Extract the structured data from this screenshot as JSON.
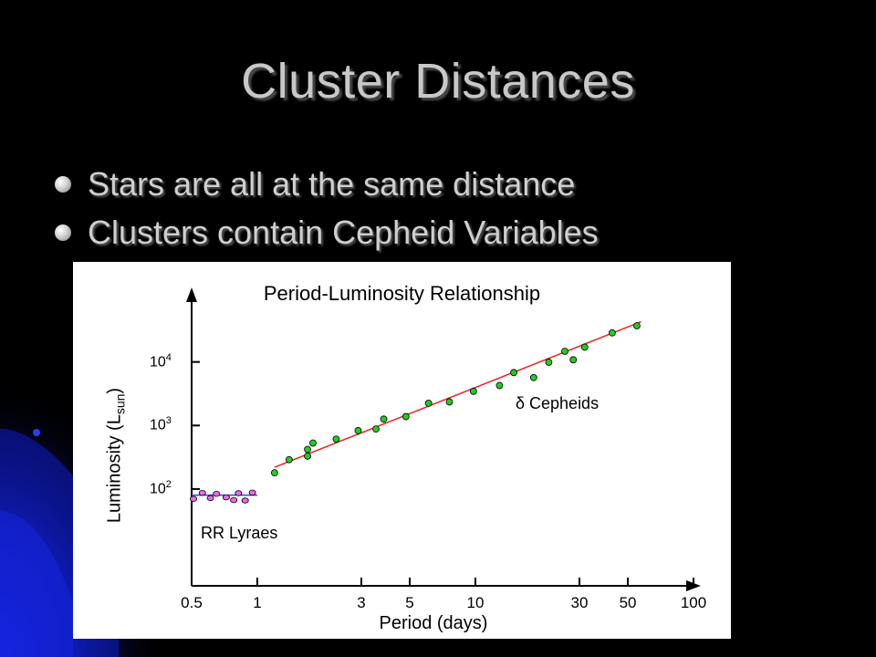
{
  "slide": {
    "title": "Cluster Distances",
    "bullets": [
      "Stars are all at the same distance",
      "Clusters contain Cepheid Variables"
    ]
  },
  "colors": {
    "cepheid": "#22cc22",
    "rr_lyrae": "#ee66ee",
    "fit_line": "#ee2222",
    "rr_line": "#2a4fd6"
  },
  "chart_data": {
    "type": "scatter",
    "title": "Period-Luminosity Relationship",
    "xlabel": "Period (days)",
    "ylabel": "Luminosity (L",
    "ylabel_sub": "sun",
    "ylabel_end": ")",
    "x_scale": "log",
    "y_scale": "log",
    "xlim": [
      0.5,
      100
    ],
    "ylim": [
      3,
      100000
    ],
    "x_ticks": [
      0.5,
      1,
      3,
      5,
      10,
      30,
      50,
      100
    ],
    "x_tick_labels": [
      "0.5",
      "1",
      "3",
      "5",
      "10",
      "30",
      "50",
      "100"
    ],
    "y_tick_labels": [
      {
        "value": 100,
        "base": "10",
        "exp": "2"
      },
      {
        "value": 1000,
        "base": "10",
        "exp": "3"
      },
      {
        "value": 10000,
        "base": "10",
        "exp": "4"
      }
    ],
    "grid": false,
    "series": [
      {
        "name": "δ Cepheids",
        "points": [
          [
            1.2,
            180
          ],
          [
            1.4,
            290
          ],
          [
            1.7,
            330
          ],
          [
            1.7,
            420
          ],
          [
            1.8,
            530
          ],
          [
            2.3,
            610
          ],
          [
            2.9,
            830
          ],
          [
            3.5,
            880
          ],
          [
            3.8,
            1260
          ],
          [
            4.8,
            1380
          ],
          [
            6.1,
            2240
          ],
          [
            7.6,
            2350
          ],
          [
            9.8,
            3450
          ],
          [
            12.9,
            4260
          ],
          [
            15.0,
            6800
          ],
          [
            18.5,
            5680
          ],
          [
            21.7,
            9900
          ],
          [
            25.7,
            14700
          ],
          [
            28.1,
            10800
          ],
          [
            31.7,
            17100
          ],
          [
            42.4,
            28700
          ],
          [
            55.0,
            37100
          ]
        ],
        "fit": [
          [
            1.2,
            220
          ],
          [
            57.5,
            43000
          ]
        ]
      },
      {
        "name": "RR Lyraes",
        "points": [
          [
            0.51,
            70
          ],
          [
            0.56,
            87
          ],
          [
            0.61,
            72
          ],
          [
            0.65,
            84
          ],
          [
            0.72,
            74
          ],
          [
            0.78,
            67
          ],
          [
            0.82,
            86
          ],
          [
            0.88,
            66
          ],
          [
            0.95,
            88
          ]
        ],
        "fit": [
          [
            0.5,
            80
          ],
          [
            1.0,
            80
          ]
        ]
      }
    ]
  }
}
